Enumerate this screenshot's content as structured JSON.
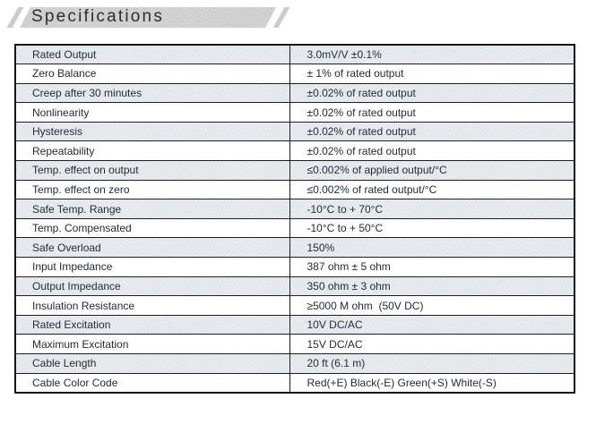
{
  "header": {
    "title": "Specifications"
  },
  "colors": {
    "band_fill": "#cccccc",
    "row_shaded": "#e9edf2",
    "border": "#141414",
    "cell_text": "#272b34"
  },
  "table": {
    "rows": [
      {
        "label": "Rated Output",
        "value": "3.0mV/V ±0.1%"
      },
      {
        "label": "Zero Balance",
        "value": "± 1% of rated output"
      },
      {
        "label": "Creep after 30 minutes",
        "value": "±0.02% of rated output"
      },
      {
        "label": "Nonlinearity",
        "value": "±0.02% of rated output"
      },
      {
        "label": "Hysteresis",
        "value": "±0.02% of rated output"
      },
      {
        "label": "Repeatability",
        "value": "±0.02% of rated output"
      },
      {
        "label": "Temp. effect on output",
        "value": "≤0.002% of applied output/°C"
      },
      {
        "label": "Temp. effect on zero",
        "value": "≤0.002% of rated output/°C"
      },
      {
        "label": "Safe Temp. Range",
        "value": "-10°C to + 70°C"
      },
      {
        "label": "Temp. Compensated",
        "value": "-10°C to + 50°C"
      },
      {
        "label": "Safe Overload",
        "value": "150%"
      },
      {
        "label": "Input Impedance",
        "value": "387 ohm ± 5 ohm"
      },
      {
        "label": "Output Impedance",
        "value": "350 ohm ± 3 ohm"
      },
      {
        "label": "Insulation Resistance",
        "value": "≥5000 M ohm  (50V DC)"
      },
      {
        "label": "Rated Excitation",
        "value": "10V DC/AC"
      },
      {
        "label": "Maximum Excitation",
        "value": "15V DC/AC"
      },
      {
        "label": "Cable Length",
        "value": "20 ft (6.1 m)"
      },
      {
        "label": "Cable Color Code",
        "value": "Red(+E) Black(-E) Green(+S) White(-S)"
      }
    ]
  }
}
